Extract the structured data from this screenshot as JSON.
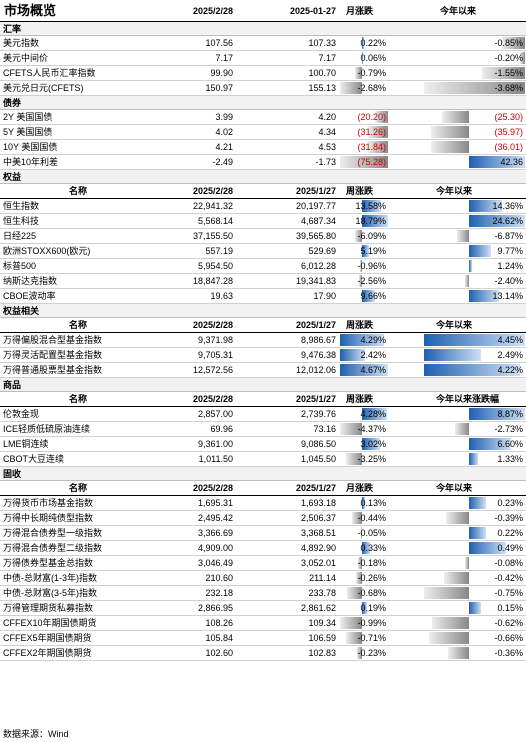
{
  "title": "市场概览",
  "header": {
    "d1": "2025/2/28",
    "d2": "2025-01-27",
    "m": "月涨跌",
    "y": "今年以来"
  },
  "sections": [
    {
      "name": "汇率",
      "colhdr": null,
      "rows": [
        {
          "name": "美元指数",
          "v1": "107.56",
          "v2": "107.33",
          "m": "0.22%",
          "mv": 0.22,
          "y": "-0.85%",
          "yv": -0.85
        },
        {
          "name": "美元中间价",
          "v1": "7.17",
          "v2": "7.17",
          "m": "0.06%",
          "mv": 0.06,
          "y": "-0.20%",
          "yv": -0.2
        },
        {
          "name": "CFETS人民币汇率指数",
          "v1": "99.90",
          "v2": "100.70",
          "m": "-0.79%",
          "mv": -0.79,
          "y": "-1.55%",
          "yv": -1.55
        },
        {
          "name": "美元兑日元(CFETS)",
          "v1": "150.97",
          "v2": "155.13",
          "m": "-2.68%",
          "mv": -2.68,
          "y": "-3.68%",
          "yv": -3.68
        }
      ]
    },
    {
      "name": "债券",
      "colhdr": null,
      "rows": [
        {
          "name": "2Y 美国国债",
          "v1": "3.99",
          "v2": "4.20",
          "m": "(20.20)",
          "mv": -20.2,
          "y": "(25.30)",
          "yv": -25.3,
          "red": true
        },
        {
          "name": "5Y 美国国债",
          "v1": "4.02",
          "v2": "4.34",
          "m": "(31.26)",
          "mv": -31.26,
          "y": "(35.97)",
          "yv": -35.97,
          "red": true
        },
        {
          "name": "10Y 美国国债",
          "v1": "4.21",
          "v2": "4.53",
          "m": "(31.84)",
          "mv": -31.84,
          "y": "(36.01)",
          "yv": -36.01,
          "red": true
        },
        {
          "name": "中美10年利差",
          "v1": "-2.49",
          "v2": "-1.73",
          "m": "(75.28)",
          "mv": -75.28,
          "y": "42.36",
          "yv": 42.36,
          "red": true
        }
      ]
    },
    {
      "name": "权益",
      "colhdr": {
        "n": "名称",
        "d1": "2025/2/28",
        "d2": "2025/1/27",
        "m": "周涨跌",
        "y": "今年以来"
      },
      "rows": [
        {
          "name": "恒生指数",
          "v1": "22,941.32",
          "v2": "20,197.77",
          "m": "13.58%",
          "mv": 13.58,
          "y": "14.36%",
          "yv": 14.36
        },
        {
          "name": "恒生科技",
          "v1": "5,568.14",
          "v2": "4,687.34",
          "m": "18.79%",
          "mv": 18.79,
          "y": "24.62%",
          "yv": 24.62
        },
        {
          "name": "日经225",
          "v1": "37,155.50",
          "v2": "39,565.80",
          "m": "-6.09%",
          "mv": -6.09,
          "y": "-6.87%",
          "yv": -6.87
        },
        {
          "name": "欧洲STOXX600(欧元)",
          "v1": "557.19",
          "v2": "529.69",
          "m": "5.19%",
          "mv": 5.19,
          "y": "9.77%",
          "yv": 9.77
        },
        {
          "name": "标普500",
          "v1": "5,954.50",
          "v2": "6,012.28",
          "m": "-0.96%",
          "mv": -0.96,
          "y": "1.24%",
          "yv": 1.24
        },
        {
          "name": "纳斯达克指数",
          "v1": "18,847.28",
          "v2": "19,341.83",
          "m": "-2.56%",
          "mv": -2.56,
          "y": "-2.40%",
          "yv": -2.4
        },
        {
          "name": "CBOE波动率",
          "v1": "19.63",
          "v2": "17.90",
          "m": "9.66%",
          "mv": 9.66,
          "y": "13.14%",
          "yv": 13.14
        }
      ]
    },
    {
      "name": "权益相关",
      "colhdr": {
        "n": "名称",
        "d1": "2025/2/28",
        "d2": "2025/1/27",
        "m": "周涨跌",
        "y": "今年以来"
      },
      "rows": [
        {
          "name": "万得偏股混合型基金指数",
          "v1": "9,371.98",
          "v2": "8,986.67",
          "m": "4.29%",
          "mv": 4.29,
          "y": "4.45%",
          "yv": 4.45
        },
        {
          "name": "万得灵活配置型基金指数",
          "v1": "9,705.31",
          "v2": "9,476.38",
          "m": "2.42%",
          "mv": 2.42,
          "y": "2.49%",
          "yv": 2.49
        },
        {
          "name": "万得普通股票型基金指数",
          "v1": "12,572.56",
          "v2": "12,012.06",
          "m": "4.67%",
          "mv": 4.67,
          "y": "4.22%",
          "yv": 4.22
        }
      ]
    },
    {
      "name": "商品",
      "colhdr": {
        "n": "名称",
        "d1": "2025/2/28",
        "d2": "2025/1/27",
        "m": "周涨跌",
        "y": "今年以来涨跌幅"
      },
      "rows": [
        {
          "name": "伦敦金现",
          "v1": "2,857.00",
          "v2": "2,739.76",
          "m": "4.28%",
          "mv": 4.28,
          "y": "8.87%",
          "yv": 8.87
        },
        {
          "name": "ICE轻质低硫原油连续",
          "v1": "69.96",
          "v2": "73.16",
          "m": "-4.37%",
          "mv": -4.37,
          "y": "-2.73%",
          "yv": -2.73
        },
        {
          "name": "LME铜连续",
          "v1": "9,361.00",
          "v2": "9,086.50",
          "m": "3.02%",
          "mv": 3.02,
          "y": "6.60%",
          "yv": 6.6
        },
        {
          "name": "CBOT大豆连续",
          "v1": "1,011.50",
          "v2": "1,045.50",
          "m": "-3.25%",
          "mv": -3.25,
          "y": "1.33%",
          "yv": 1.33
        }
      ]
    },
    {
      "name": "固收",
      "colhdr": {
        "n": "名称",
        "d1": "2025/2/28",
        "d2": "2025/1/27",
        "m": "月涨跌",
        "y": "今年以来"
      },
      "rows": [
        {
          "name": "万得货币市场基金指数",
          "v1": "1,695.31",
          "v2": "1,693.18",
          "m": "0.13%",
          "mv": 0.13,
          "y": "0.23%",
          "yv": 0.23
        },
        {
          "name": "万得中长期纯债型指数",
          "v1": "2,495.42",
          "v2": "2,506.37",
          "m": "-0.44%",
          "mv": -0.44,
          "y": "-0.39%",
          "yv": -0.39
        },
        {
          "name": "万得混合债券型一级指数",
          "v1": "3,366.69",
          "v2": "3,368.51",
          "m": "-0.05%",
          "mv": -0.05,
          "y": "0.22%",
          "yv": 0.22
        },
        {
          "name": "万得混合债券型二级指数",
          "v1": "4,909.00",
          "v2": "4,892.90",
          "m": "0.33%",
          "mv": 0.33,
          "y": "0.49%",
          "yv": 0.49
        },
        {
          "name": "万得债券型基金总指数",
          "v1": "3,046.49",
          "v2": "3,052.01",
          "m": "-0.18%",
          "mv": -0.18,
          "y": "-0.08%",
          "yv": -0.08
        },
        {
          "name": "中债-总财富(1-3年)指数",
          "v1": "210.60",
          "v2": "211.14",
          "m": "-0.26%",
          "mv": -0.26,
          "y": "-0.42%",
          "yv": -0.42
        },
        {
          "name": "中债-总财富(3-5年)指数",
          "v1": "232.18",
          "v2": "233.78",
          "m": "-0.68%",
          "mv": -0.68,
          "y": "-0.75%",
          "yv": -0.75
        },
        {
          "name": "万得管理期货私募指数",
          "v1": "2,866.95",
          "v2": "2,861.62",
          "m": "0.19%",
          "mv": 0.19,
          "y": "0.15%",
          "yv": 0.15
        },
        {
          "name": "CFFEX10年期国债期货",
          "v1": "108.26",
          "v2": "109.34",
          "m": "-0.99%",
          "mv": -0.99,
          "y": "-0.62%",
          "yv": -0.62
        },
        {
          "name": "CFFEX5年期国债期货",
          "v1": "105.84",
          "v2": "106.59",
          "m": "-0.71%",
          "mv": -0.71,
          "y": "-0.66%",
          "yv": -0.66
        },
        {
          "name": "CFFEX2年期国债期货",
          "v1": "102.60",
          "v2": "102.83",
          "m": "-0.23%",
          "mv": -0.23,
          "y": "-0.36%",
          "yv": -0.36
        }
      ]
    }
  ],
  "footer": "数据来源：Wind"
}
